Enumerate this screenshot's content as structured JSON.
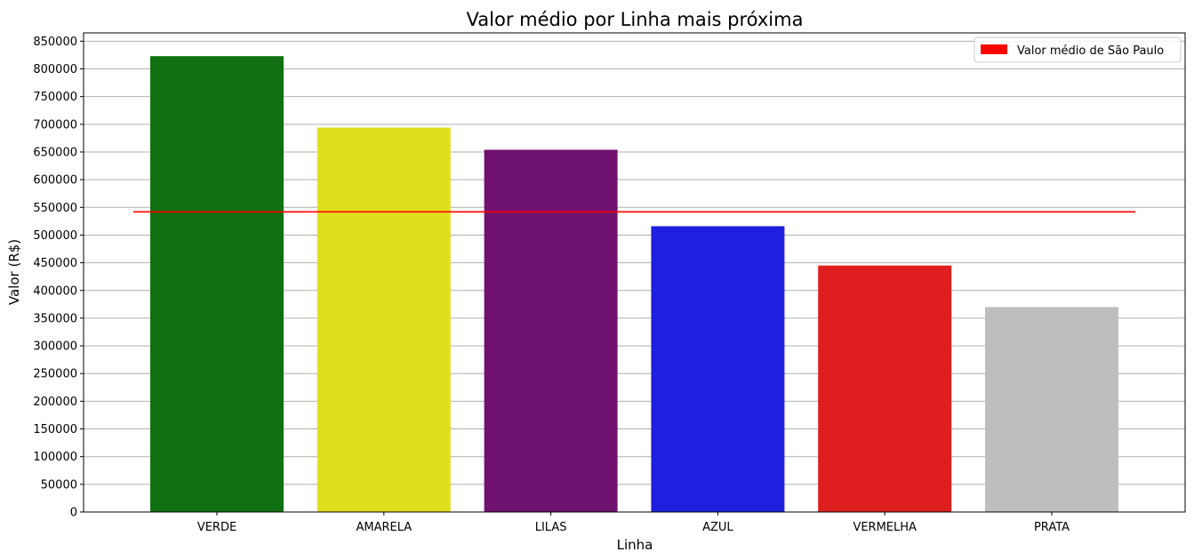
{
  "chart_data": {
    "type": "bar",
    "title": "Valor médio por Linha mais próxima",
    "xlabel": "Linha",
    "ylabel": "Valor (R$)",
    "categories": [
      "VERDE",
      "AMARELA",
      "LILAS",
      "AZUL",
      "VERMELHA",
      "PRATA"
    ],
    "values": [
      823000,
      694000,
      654000,
      516000,
      445000,
      370000
    ],
    "colors": [
      "#117011",
      "#dfdf1f",
      "#6f116f",
      "#1f1fdf",
      "#df1f1f",
      "#bebebe"
    ],
    "ylim": [
      0,
      865000
    ],
    "yticks": [
      0,
      50000,
      100000,
      150000,
      200000,
      250000,
      300000,
      350000,
      400000,
      450000,
      500000,
      550000,
      600000,
      650000,
      700000,
      750000,
      800000,
      850000
    ],
    "grid": "y",
    "reference_line": {
      "value": 542000,
      "label": "Valor médio de São Paulo",
      "color": "#ff0000"
    },
    "legend": {
      "placement": "top-right",
      "entries": [
        "Valor médio de São Paulo"
      ]
    }
  }
}
